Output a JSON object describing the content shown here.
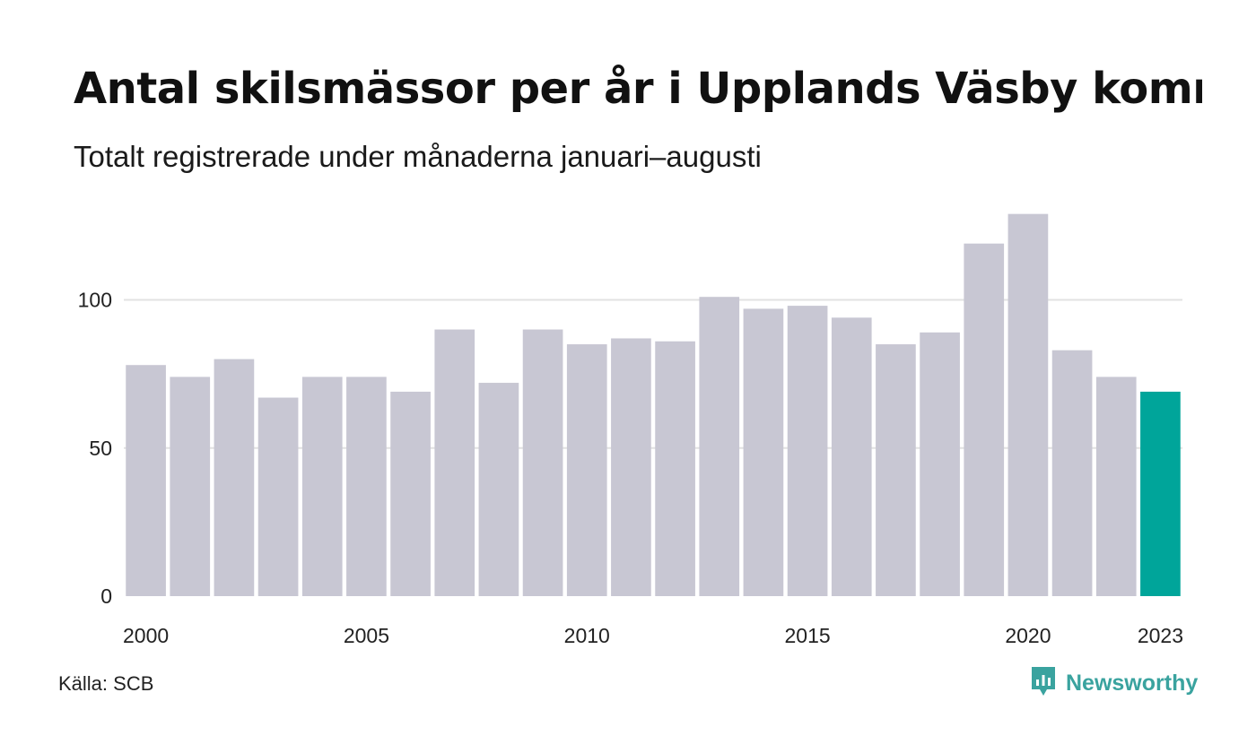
{
  "header": {
    "title": "Antal skilsmässor per år i Upplands Väsby kommun",
    "subtitle": "Totalt registrerade under månaderna januari–augusti"
  },
  "footer": {
    "source": "Källa: SCB",
    "brand": "Newsworthy"
  },
  "colors": {
    "bar": "#c8c7d3",
    "highlight": "#00a59a",
    "grid": "#e2e2e2",
    "brand": "#3aa39f"
  },
  "chart_data": {
    "type": "bar",
    "categories": [
      "2000",
      "2001",
      "2002",
      "2003",
      "2004",
      "2005",
      "2006",
      "2007",
      "2008",
      "2009",
      "2010",
      "2011",
      "2012",
      "2013",
      "2014",
      "2015",
      "2016",
      "2017",
      "2018",
      "2019",
      "2020",
      "2021",
      "2022",
      "2023"
    ],
    "values": [
      78,
      74,
      80,
      67,
      74,
      74,
      69,
      90,
      72,
      90,
      85,
      87,
      86,
      101,
      97,
      98,
      94,
      85,
      89,
      119,
      129,
      83,
      74,
      69
    ],
    "highlight_category": "2023",
    "title": "Antal skilsmässor per år i Upplands Väsby kommun",
    "subtitle": "Totalt registrerade under månaderna januari–augusti",
    "xlabel": "",
    "ylabel": "",
    "ylim": [
      0,
      129
    ],
    "yticks": [
      0,
      50,
      100
    ],
    "xtick_labels": [
      "2000",
      "2005",
      "2010",
      "2015",
      "2020",
      "2023"
    ],
    "grid": true,
    "legend": "none"
  }
}
